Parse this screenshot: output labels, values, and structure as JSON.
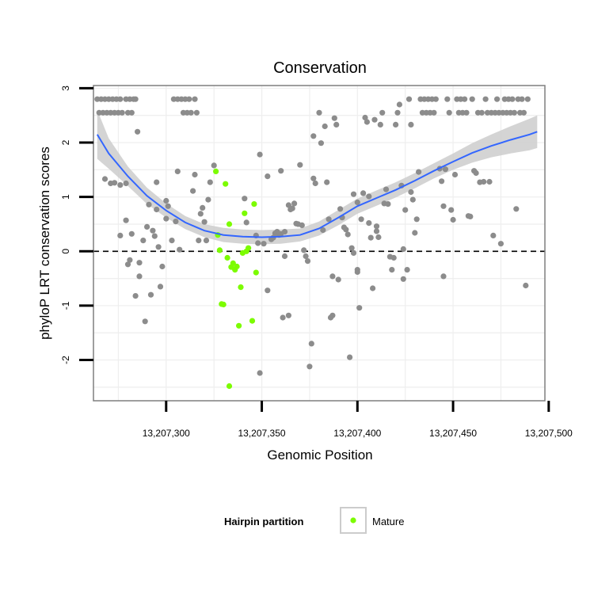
{
  "chart_data": {
    "type": "scatter",
    "title": "Conservation",
    "xlabel": "Genomic Position",
    "ylabel": "phyloP LRT conservation scores",
    "xlim": [
      13207262,
      13207498
    ],
    "ylim": [
      -2.75,
      3.05
    ],
    "x_ticks": [
      13207300,
      13207350,
      13207400,
      13207450,
      13207500
    ],
    "x_tick_labels": [
      "13,207,300",
      "13,207,350",
      "13,207,400",
      "13,207,450",
      "13,207,500"
    ],
    "y_ticks": [
      -2,
      -1,
      0,
      1,
      2,
      3
    ],
    "y_tick_labels": [
      "-2",
      "-1",
      "0",
      "1",
      "2",
      "3"
    ],
    "grid": true,
    "reference_line": {
      "y": 0,
      "style": "dashed"
    },
    "legend": {
      "title": "Hairpin partition",
      "position": "bottom",
      "entries": [
        {
          "label": "Mature",
          "color": "#7cfc00"
        }
      ]
    },
    "colors": {
      "other_points": "#8c8c8c",
      "mature_points": "#7cfc00",
      "smooth_line": "#3366ff",
      "confidence_band": "#cccccc",
      "panel_border": "#7f7f7f",
      "grid": "#eeeeee"
    },
    "series": [
      {
        "group": "other",
        "points": [
          [
            13207264,
            2.8
          ],
          [
            13207265,
            2.55
          ],
          [
            13207266,
            2.8
          ],
          [
            13207267,
            2.55
          ],
          [
            13207268,
            2.8
          ],
          [
            13207269,
            2.55
          ],
          [
            13207270,
            2.8
          ],
          [
            13207271,
            2.55
          ],
          [
            13207272,
            2.8
          ],
          [
            13207273,
            2.55
          ],
          [
            13207274,
            2.8
          ],
          [
            13207275,
            2.55
          ],
          [
            13207276,
            2.8
          ],
          [
            13207277,
            2.55
          ],
          [
            13207279,
            2.8
          ],
          [
            13207280,
            2.55
          ],
          [
            13207281,
            2.8
          ],
          [
            13207282,
            2.55
          ],
          [
            13207283,
            2.8
          ],
          [
            13207284,
            2.8
          ],
          [
            13207268,
            1.33
          ],
          [
            13207271,
            1.25
          ],
          [
            13207273,
            1.26
          ],
          [
            13207276,
            0.29
          ],
          [
            13207276,
            1.22
          ],
          [
            13207279,
            0.57
          ],
          [
            13207279,
            1.25
          ],
          [
            13207280,
            -0.24
          ],
          [
            13207281,
            -0.16
          ],
          [
            13207282,
            0.32
          ],
          [
            13207284,
            -0.82
          ],
          [
            13207285,
            2.2
          ],
          [
            13207286,
            -0.46
          ],
          [
            13207286,
            -0.21
          ],
          [
            13207288,
            0.2
          ],
          [
            13207289,
            -1.29
          ],
          [
            13207290,
            0.45
          ],
          [
            13207291,
            0.86
          ],
          [
            13207292,
            -0.8
          ],
          [
            13207293,
            0.38
          ],
          [
            13207294,
            0.28
          ],
          [
            13207295,
            1.27
          ],
          [
            13207295,
            0.77
          ],
          [
            13207296,
            0.08
          ],
          [
            13207297,
            -0.65
          ],
          [
            13207298,
            -0.28
          ],
          [
            13207300,
            0.93
          ],
          [
            13207300,
            0.6
          ],
          [
            13207301,
            0.83
          ],
          [
            13207303,
            0.2
          ],
          [
            13207304,
            2.8
          ],
          [
            13207305,
            0.55
          ],
          [
            13207306,
            2.8
          ],
          [
            13207306,
            1.47
          ],
          [
            13207307,
            0.03
          ],
          [
            13207308,
            2.8
          ],
          [
            13207309,
            2.55
          ],
          [
            13207310,
            2.8
          ],
          [
            13207311,
            2.55
          ],
          [
            13207312,
            2.8
          ],
          [
            13207313,
            2.55
          ],
          [
            13207314,
            1.11
          ],
          [
            13207315,
            2.8
          ],
          [
            13207315,
            1.41
          ],
          [
            13207316,
            2.55
          ],
          [
            13207317,
            0.2
          ],
          [
            13207318,
            0.69
          ],
          [
            13207319,
            0.8
          ],
          [
            13207320,
            0.54
          ],
          [
            13207321,
            0.2
          ],
          [
            13207322,
            0.95
          ],
          [
            13207323,
            1.27
          ],
          [
            13207325,
            1.58
          ],
          [
            13207341,
            0.97
          ],
          [
            13207342,
            0.53
          ],
          [
            13207347,
            0.29
          ],
          [
            13207348,
            0.15
          ],
          [
            13207349,
            1.78
          ],
          [
            13207349,
            -2.24
          ],
          [
            13207351,
            0.14
          ],
          [
            13207353,
            1.38
          ],
          [
            13207353,
            -0.72
          ],
          [
            13207355,
            0.22
          ],
          [
            13207356,
            0.25
          ],
          [
            13207357,
            0.33
          ],
          [
            13207358,
            0.36
          ],
          [
            13207359,
            0.3
          ],
          [
            13207360,
            1.48
          ],
          [
            13207360,
            0.32
          ],
          [
            13207361,
            -1.22
          ],
          [
            13207362,
            0.36
          ],
          [
            13207362,
            -0.09
          ],
          [
            13207364,
            -1.18
          ],
          [
            13207364,
            0.85
          ],
          [
            13207365,
            0.77
          ],
          [
            13207366,
            0.79
          ],
          [
            13207367,
            0.88
          ],
          [
            13207368,
            0.51
          ],
          [
            13207369,
            0.5
          ],
          [
            13207370,
            1.59
          ],
          [
            13207371,
            0.48
          ],
          [
            13207372,
            0.02
          ],
          [
            13207373,
            -0.09
          ],
          [
            13207374,
            -0.18
          ],
          [
            13207375,
            -2.12
          ],
          [
            13207376,
            -1.7
          ],
          [
            13207377,
            2.12
          ],
          [
            13207377,
            1.34
          ],
          [
            13207378,
            1.25
          ],
          [
            13207380,
            2.55
          ],
          [
            13207381,
            1.99
          ],
          [
            13207382,
            0.39
          ],
          [
            13207383,
            2.3
          ],
          [
            13207384,
            1.27
          ],
          [
            13207385,
            0.59
          ],
          [
            13207386,
            -1.22
          ],
          [
            13207387,
            -1.18
          ],
          [
            13207387,
            -0.46
          ],
          [
            13207388,
            2.45
          ],
          [
            13207389,
            2.33
          ],
          [
            13207390,
            -0.52
          ],
          [
            13207391,
            0.78
          ],
          [
            13207392,
            0.62
          ],
          [
            13207393,
            0.44
          ],
          [
            13207394,
            0.4
          ],
          [
            13207395,
            0.31
          ],
          [
            13207396,
            -1.95
          ],
          [
            13207397,
            0.06
          ],
          [
            13207398,
            1.05
          ],
          [
            13207398,
            -0.03
          ],
          [
            13207400,
            0.9
          ],
          [
            13207400,
            -0.34
          ],
          [
            13207400,
            -0.38
          ],
          [
            13207401,
            -1.04
          ],
          [
            13207402,
            0.59
          ],
          [
            13207403,
            1.07
          ],
          [
            13207404,
            2.46
          ],
          [
            13207405,
            2.38
          ],
          [
            13207406,
            1.01
          ],
          [
            13207406,
            0.52
          ],
          [
            13207407,
            0.25
          ],
          [
            13207408,
            -0.68
          ],
          [
            13207409,
            2.42
          ],
          [
            13207410,
            0.46
          ],
          [
            13207410,
            0.37
          ],
          [
            13207411,
            0.26
          ],
          [
            13207412,
            2.33
          ],
          [
            13207413,
            2.55
          ],
          [
            13207414,
            0.88
          ],
          [
            13207415,
            1.14
          ],
          [
            13207416,
            0.87
          ],
          [
            13207417,
            -0.1
          ],
          [
            13207418,
            -0.34
          ],
          [
            13207419,
            -0.12
          ],
          [
            13207420,
            2.33
          ],
          [
            13207421,
            2.55
          ],
          [
            13207422,
            2.7
          ],
          [
            13207423,
            1.21
          ],
          [
            13207424,
            0.04
          ],
          [
            13207424,
            -0.51
          ],
          [
            13207425,
            0.76
          ],
          [
            13207426,
            -0.34
          ],
          [
            13207427,
            2.8
          ],
          [
            13207428,
            1.09
          ],
          [
            13207428,
            2.33
          ],
          [
            13207429,
            0.95
          ],
          [
            13207430,
            0.34
          ],
          [
            13207431,
            0.59
          ],
          [
            13207432,
            1.46
          ],
          [
            13207433,
            2.8
          ],
          [
            13207434,
            2.55
          ],
          [
            13207435,
            2.8
          ],
          [
            13207436,
            2.55
          ],
          [
            13207437,
            2.8
          ],
          [
            13207438,
            2.55
          ],
          [
            13207439,
            2.8
          ],
          [
            13207440,
            2.55
          ],
          [
            13207441,
            2.8
          ],
          [
            13207443,
            1.52
          ],
          [
            13207444,
            1.29
          ],
          [
            13207445,
            -0.46
          ],
          [
            13207445,
            0.83
          ],
          [
            13207446,
            1.51
          ],
          [
            13207447,
            2.8
          ],
          [
            13207448,
            2.55
          ],
          [
            13207449,
            0.76
          ],
          [
            13207450,
            0.58
          ],
          [
            13207451,
            1.41
          ],
          [
            13207452,
            2.8
          ],
          [
            13207453,
            2.55
          ],
          [
            13207454,
            2.8
          ],
          [
            13207455,
            2.55
          ],
          [
            13207456,
            2.8
          ],
          [
            13207457,
            2.55
          ],
          [
            13207458,
            0.65
          ],
          [
            13207459,
            0.64
          ],
          [
            13207460,
            2.8
          ],
          [
            13207461,
            1.48
          ],
          [
            13207462,
            1.44
          ],
          [
            13207463,
            2.55
          ],
          [
            13207464,
            1.27
          ],
          [
            13207465,
            2.55
          ],
          [
            13207466,
            1.28
          ],
          [
            13207467,
            2.8
          ],
          [
            13207468,
            2.55
          ],
          [
            13207469,
            1.28
          ],
          [
            13207470,
            2.55
          ],
          [
            13207471,
            0.29
          ],
          [
            13207472,
            2.55
          ],
          [
            13207473,
            2.8
          ],
          [
            13207474,
            2.55
          ],
          [
            13207475,
            0.14
          ],
          [
            13207476,
            2.55
          ],
          [
            13207477,
            2.8
          ],
          [
            13207478,
            2.55
          ],
          [
            13207479,
            2.8
          ],
          [
            13207480,
            2.55
          ],
          [
            13207481,
            2.8
          ],
          [
            13207482,
            2.55
          ],
          [
            13207483,
            0.78
          ],
          [
            13207484,
            2.8
          ],
          [
            13207485,
            2.55
          ],
          [
            13207486,
            2.8
          ],
          [
            13207487,
            2.55
          ],
          [
            13207488,
            -0.63
          ],
          [
            13207489,
            2.8
          ]
        ]
      },
      {
        "group": "Mature",
        "name": "Mature",
        "points": [
          [
            13207326,
            1.47
          ],
          [
            13207327,
            0.3
          ],
          [
            13207328,
            0.02
          ],
          [
            13207329,
            -0.97
          ],
          [
            13207330,
            -0.98
          ],
          [
            13207331,
            1.24
          ],
          [
            13207332,
            -0.12
          ],
          [
            13207333,
            0.5
          ],
          [
            13207334,
            -0.29
          ],
          [
            13207335,
            -0.22
          ],
          [
            13207336,
            -0.34
          ],
          [
            13207337,
            -0.28
          ],
          [
            13207338,
            -1.37
          ],
          [
            13207339,
            -0.66
          ],
          [
            13207340,
            -0.03
          ],
          [
            13207341,
            0.7
          ],
          [
            13207342,
            0.0
          ],
          [
            13207343,
            0.06
          ],
          [
            13207345,
            -1.28
          ],
          [
            13207346,
            0.87
          ],
          [
            13207347,
            -0.39
          ],
          [
            13207333,
            -2.48
          ]
        ]
      }
    ],
    "smooth": {
      "x": [
        13207264,
        13207270,
        13207280,
        13207290,
        13207300,
        13207310,
        13207320,
        13207330,
        13207340,
        13207350,
        13207360,
        13207370,
        13207380,
        13207390,
        13207400,
        13207410,
        13207420,
        13207430,
        13207440,
        13207450,
        13207460,
        13207470,
        13207480,
        13207490,
        13207494
      ],
      "y": [
        2.15,
        1.8,
        1.38,
        1.02,
        0.75,
        0.53,
        0.38,
        0.3,
        0.27,
        0.26,
        0.27,
        0.3,
        0.42,
        0.62,
        0.83,
        0.98,
        1.13,
        1.3,
        1.48,
        1.65,
        1.81,
        1.94,
        2.05,
        2.15,
        2.2
      ],
      "lower": [
        1.7,
        1.52,
        1.2,
        0.87,
        0.62,
        0.41,
        0.26,
        0.17,
        0.14,
        0.13,
        0.14,
        0.18,
        0.29,
        0.48,
        0.69,
        0.84,
        0.99,
        1.16,
        1.34,
        1.5,
        1.63,
        1.73,
        1.8,
        1.86,
        1.9
      ],
      "upper": [
        2.6,
        2.08,
        1.56,
        1.17,
        0.88,
        0.65,
        0.5,
        0.43,
        0.4,
        0.39,
        0.4,
        0.42,
        0.55,
        0.76,
        0.97,
        1.12,
        1.27,
        1.44,
        1.62,
        1.8,
        1.99,
        2.15,
        2.3,
        2.44,
        2.5
      ]
    }
  }
}
